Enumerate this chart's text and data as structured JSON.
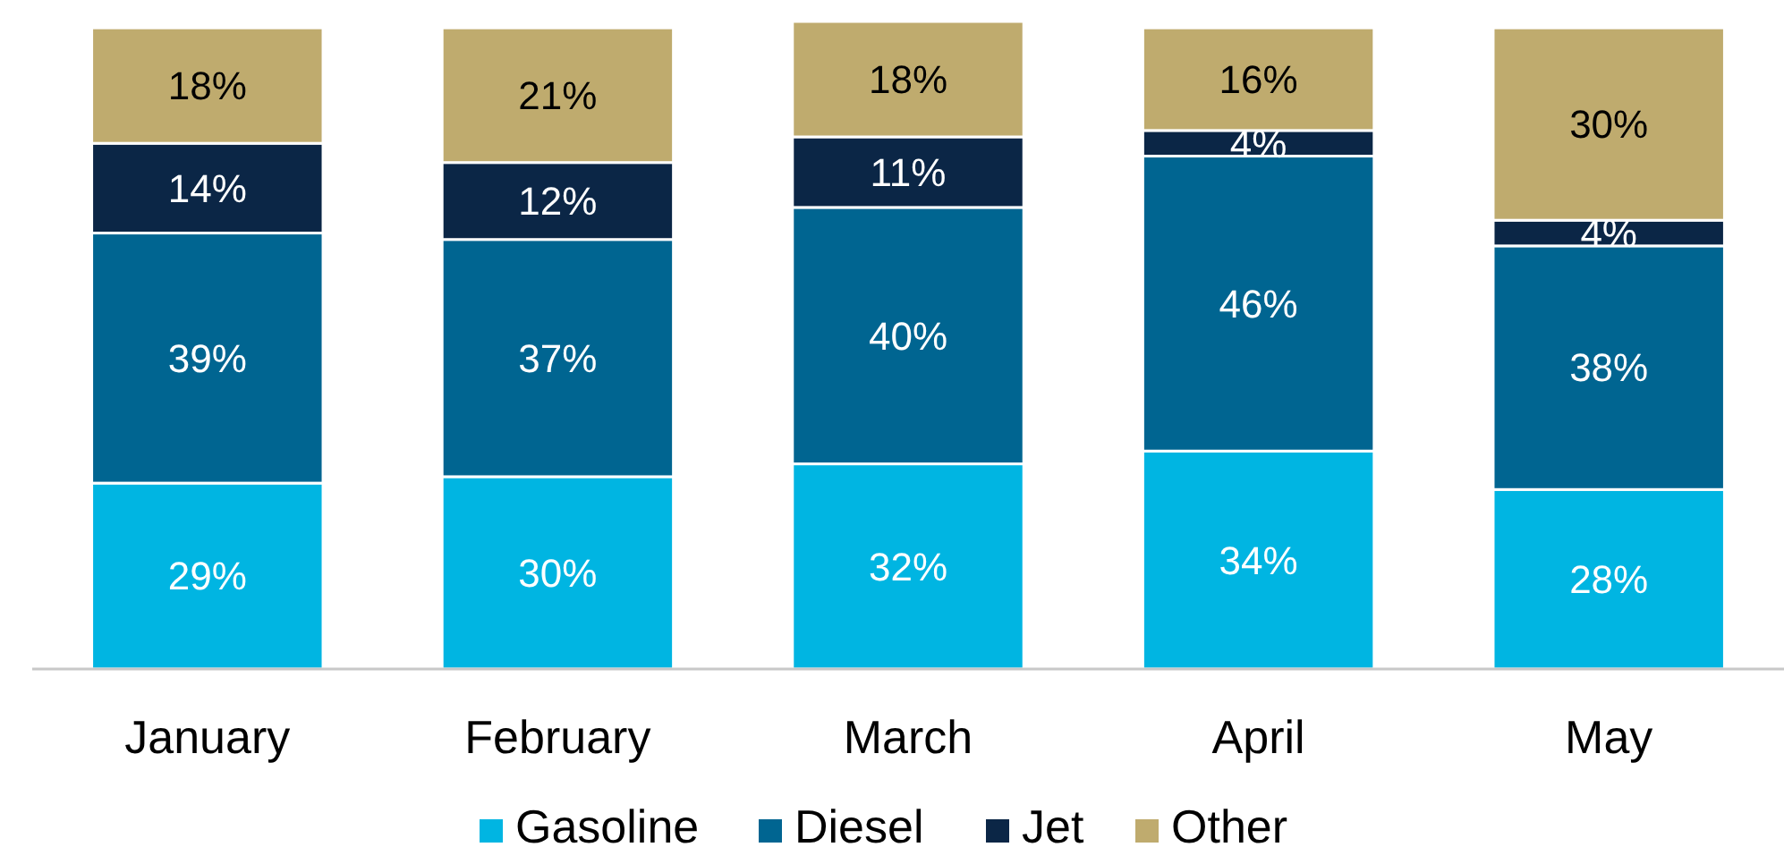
{
  "chart_data": {
    "type": "bar",
    "stacked": true,
    "legend": "bottom",
    "categories": [
      "January",
      "February",
      "March",
      "April",
      "May"
    ],
    "series": [
      {
        "name": "Gasoline",
        "color": "#00b5e2",
        "values": [
          29,
          30,
          32,
          34,
          28
        ],
        "value_labels": [
          "29%",
          "30%",
          "32%",
          "34%",
          "28%"
        ]
      },
      {
        "name": "Diesel",
        "color": "#006591",
        "values": [
          39,
          37,
          40,
          46,
          38
        ],
        "value_labels": [
          "39%",
          "37%",
          "40%",
          "46%",
          "38%"
        ]
      },
      {
        "name": "Jet",
        "color": "#0b2646",
        "values": [
          14,
          12,
          11,
          4,
          4
        ],
        "value_labels": [
          "14%",
          "12%",
          "11%",
          "4%",
          "4%"
        ]
      },
      {
        "name": "Other",
        "color": "#bfab6e",
        "values": [
          18,
          21,
          18,
          16,
          30
        ],
        "value_labels": [
          "18%",
          "21%",
          "18%",
          "16%",
          "30%"
        ]
      }
    ]
  }
}
